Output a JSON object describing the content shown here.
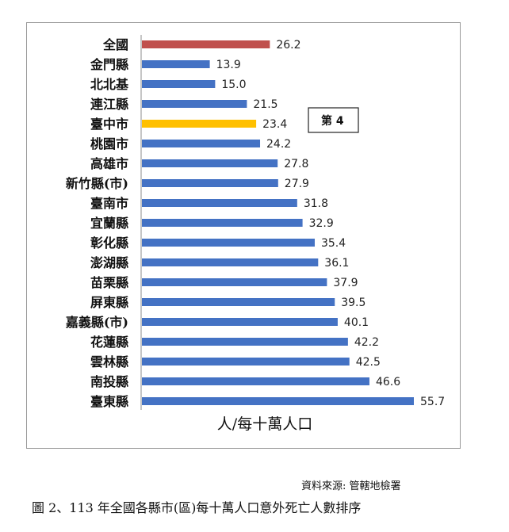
{
  "chart_data": {
    "type": "bar",
    "orientation": "horizontal",
    "categories": [
      "全國",
      "金門縣",
      "北北基",
      "連江縣",
      "臺中市",
      "桃園市",
      "高雄市",
      "新竹縣(市)",
      "臺南市",
      "宜蘭縣",
      "彰化縣",
      "澎湖縣",
      "苗栗縣",
      "屏東縣",
      "嘉義縣(市)",
      "花蓮縣",
      "雲林縣",
      "南投縣",
      "臺東縣"
    ],
    "values": [
      26.2,
      13.9,
      15.0,
      21.5,
      23.4,
      24.2,
      27.8,
      27.9,
      31.8,
      32.9,
      35.4,
      36.1,
      37.9,
      39.5,
      40.1,
      42.2,
      42.5,
      46.6,
      55.7
    ],
    "value_labels": [
      "26.2",
      "13.9",
      "15.0",
      "21.5",
      "23.4",
      "24.2",
      "27.8",
      "27.9",
      "31.8",
      "32.9",
      "35.4",
      "36.1",
      "37.9",
      "39.5",
      "40.1",
      "42.2",
      "42.5",
      "46.6",
      "55.7"
    ],
    "colors": {
      "default": "#4472C4",
      "national": "#C0504D",
      "highlight": "#FFC000"
    },
    "bar_colors": [
      "national",
      "default",
      "default",
      "default",
      "highlight",
      "default",
      "default",
      "default",
      "default",
      "default",
      "default",
      "default",
      "default",
      "default",
      "default",
      "default",
      "default",
      "default",
      "default"
    ],
    "xlabel": "人/每十萬人口",
    "xlim": [
      0,
      60
    ],
    "grid": false,
    "legend": "none",
    "annotations": [
      {
        "text": "第 4",
        "category": "臺中市"
      }
    ]
  },
  "source": "資料來源: 管轄地檢署",
  "caption": "圖 2、113 年全國各縣市(區)每十萬人口意外死亡人數排序"
}
